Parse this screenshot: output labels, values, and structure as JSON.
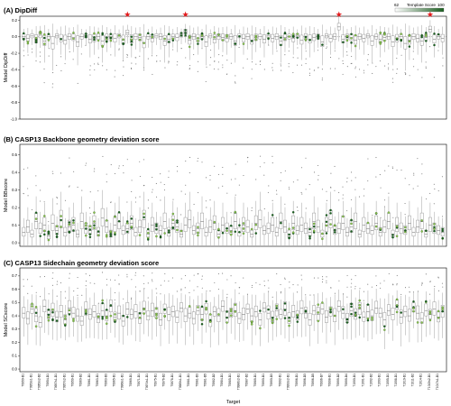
{
  "chart_data": [
    {
      "type": "box",
      "panel": "(A)",
      "title": "DipDiff",
      "ylabel": "Model DipDiff",
      "ylim": [
        -1.0,
        0.25
      ],
      "yticks": [
        -1.0,
        -0.8,
        -0.6,
        -0.4,
        -0.2,
        0.0,
        0.2
      ],
      "starred_positions": [
        25,
        39,
        76,
        98
      ],
      "box_median": [
        0.0,
        -0.02,
        0.01,
        -0.03,
        0.02,
        -0.05,
        0.0,
        -0.08,
        0.01,
        -0.02,
        -0.04,
        0.0,
        -0.01,
        -0.06,
        0.0,
        0.01,
        -0.03,
        -0.02,
        0.0,
        -0.05,
        -0.01,
        0.0,
        -0.02,
        0.01,
        -0.04,
        0.05,
        -0.03,
        0.0,
        -0.01,
        -0.07,
        0.0,
        -0.02,
        0.01,
        0.0,
        -0.05,
        -0.03,
        0.0,
        -0.01,
        0.02,
        0.06,
        -0.04,
        0.0,
        -0.02,
        0.0,
        -0.06,
        0.01,
        -0.03,
        0.0,
        -0.01,
        -0.02,
        0.0,
        -0.05,
        0.01,
        -0.02,
        0.0,
        -0.04,
        -0.01,
        0.0,
        -0.03,
        0.01,
        -0.02,
        0.0,
        -0.05,
        -0.01,
        0.0,
        -0.02,
        0.01,
        -0.04,
        0.0,
        -0.03,
        -0.01,
        0.0,
        -0.06,
        0.01,
        -0.02,
        0.0,
        0.12,
        -0.03,
        0.0,
        -0.01,
        -0.04,
        0.0,
        -0.02,
        0.01,
        -0.05,
        0.0,
        -0.03,
        -0.01,
        0.0,
        -0.06,
        -0.02,
        0.0,
        -0.08,
        -0.04,
        0.0,
        -0.02,
        -0.05,
        -0.01,
        0.09,
        -0.03,
        0.0,
        -0.02
      ],
      "box_spread": [
        0.06,
        0.08,
        0.05,
        0.1,
        0.07,
        0.12,
        0.06,
        0.15,
        0.05,
        0.09,
        0.11,
        0.07,
        0.08,
        0.13,
        0.06,
        0.05,
        0.1,
        0.09,
        0.07,
        0.12,
        0.08,
        0.06,
        0.1,
        0.05,
        0.11,
        0.06,
        0.1,
        0.07,
        0.08,
        0.14,
        0.06,
        0.09,
        0.05,
        0.07,
        0.12,
        0.1,
        0.06,
        0.08,
        0.05,
        0.06,
        0.11,
        0.07,
        0.09,
        0.06,
        0.13,
        0.05,
        0.1,
        0.07,
        0.08,
        0.09,
        0.06,
        0.12,
        0.05,
        0.09,
        0.07,
        0.11,
        0.08,
        0.06,
        0.1,
        0.05,
        0.09,
        0.07,
        0.12,
        0.08,
        0.06,
        0.09,
        0.05,
        0.11,
        0.07,
        0.1,
        0.08,
        0.06,
        0.13,
        0.05,
        0.09,
        0.07,
        0.08,
        0.1,
        0.06,
        0.08,
        0.11,
        0.07,
        0.09,
        0.05,
        0.12,
        0.06,
        0.1,
        0.08,
        0.07,
        0.13,
        0.09,
        0.06,
        0.15,
        0.11,
        0.07,
        0.09,
        0.12,
        0.08,
        0.07,
        0.1,
        0.06,
        0.09
      ]
    },
    {
      "type": "box",
      "panel": "(B)",
      "title": "CASP13 Backbone geometry deviation score",
      "ylabel": "Model BBscore",
      "ylim": [
        -0.02,
        0.56
      ],
      "yticks": [
        0.0,
        0.1,
        0.2,
        0.3,
        0.4,
        0.5
      ],
      "box_median": [
        0.06,
        0.09,
        0.05,
        0.12,
        0.08,
        0.1,
        0.04,
        0.11,
        0.07,
        0.13,
        0.06,
        0.09,
        0.1,
        0.05,
        0.12,
        0.08,
        0.07,
        0.11,
        0.06,
        0.14,
        0.09,
        0.05,
        0.1,
        0.12,
        0.07,
        0.08,
        0.11,
        0.06,
        0.09,
        0.13,
        0.05,
        0.1,
        0.08,
        0.07,
        0.12,
        0.06,
        0.11,
        0.09,
        0.05,
        0.1,
        0.13,
        0.07,
        0.08,
        0.12,
        0.06,
        0.09,
        0.11,
        0.05,
        0.1,
        0.08,
        0.07,
        0.12,
        0.06,
        0.1,
        0.09,
        0.05,
        0.11,
        0.13,
        0.07,
        0.08,
        0.1,
        0.06,
        0.12,
        0.09,
        0.05,
        0.11,
        0.07,
        0.1,
        0.08,
        0.06,
        0.12,
        0.09,
        0.05,
        0.1,
        0.13,
        0.07,
        0.08,
        0.11,
        0.06,
        0.09,
        0.12,
        0.05,
        0.1,
        0.08,
        0.07,
        0.11,
        0.06,
        0.09,
        0.12,
        0.05,
        0.1,
        0.08,
        0.07,
        0.11,
        0.06,
        0.09,
        0.12,
        0.05,
        0.1,
        0.08,
        0.07,
        0.06
      ],
      "box_spread": [
        0.05,
        0.07,
        0.04,
        0.09,
        0.06,
        0.08,
        0.04,
        0.09,
        0.05,
        0.1,
        0.05,
        0.07,
        0.08,
        0.04,
        0.09,
        0.06,
        0.05,
        0.08,
        0.05,
        0.1,
        0.07,
        0.04,
        0.08,
        0.09,
        0.05,
        0.06,
        0.08,
        0.05,
        0.07,
        0.1,
        0.04,
        0.08,
        0.06,
        0.05,
        0.09,
        0.05,
        0.08,
        0.07,
        0.04,
        0.08,
        0.1,
        0.05,
        0.06,
        0.09,
        0.05,
        0.07,
        0.08,
        0.04,
        0.08,
        0.06,
        0.05,
        0.09,
        0.05,
        0.08,
        0.07,
        0.04,
        0.08,
        0.1,
        0.05,
        0.06,
        0.08,
        0.05,
        0.09,
        0.07,
        0.04,
        0.08,
        0.05,
        0.08,
        0.06,
        0.05,
        0.09,
        0.07,
        0.04,
        0.08,
        0.1,
        0.05,
        0.06,
        0.08,
        0.05,
        0.07,
        0.09,
        0.04,
        0.08,
        0.06,
        0.05,
        0.08,
        0.05,
        0.07,
        0.09,
        0.04,
        0.08,
        0.06,
        0.05,
        0.08,
        0.05,
        0.07,
        0.09,
        0.04,
        0.08,
        0.06,
        0.05,
        0.05
      ]
    },
    {
      "type": "box",
      "panel": "(C)",
      "title": "CASP13 Sidechain geometry deviation score",
      "ylabel": "Model SCscore",
      "xlabel": "Target",
      "ylim": [
        -0.02,
        0.76
      ],
      "yticks": [
        0.0,
        0.1,
        0.2,
        0.3,
        0.4,
        0.5,
        0.6,
        0.7
      ],
      "box_median": [
        0.42,
        0.38,
        0.45,
        0.4,
        0.35,
        0.47,
        0.41,
        0.44,
        0.39,
        0.43,
        0.37,
        0.46,
        0.42,
        0.4,
        0.36,
        0.45,
        0.41,
        0.43,
        0.38,
        0.44,
        0.4,
        0.47,
        0.39,
        0.42,
        0.36,
        0.45,
        0.41,
        0.43,
        0.38,
        0.46,
        0.4,
        0.44,
        0.42,
        0.37,
        0.45,
        0.41,
        0.43,
        0.39,
        0.46,
        0.4,
        0.42,
        0.38,
        0.44,
        0.41,
        0.45,
        0.36,
        0.43,
        0.4,
        0.47,
        0.39,
        0.42,
        0.44,
        0.38,
        0.41,
        0.45,
        0.4,
        0.43,
        0.37,
        0.46,
        0.42,
        0.39,
        0.44,
        0.41,
        0.45,
        0.38,
        0.43,
        0.4,
        0.46,
        0.42,
        0.37,
        0.44,
        0.41,
        0.45,
        0.39,
        0.43,
        0.4,
        0.47,
        0.42,
        0.38,
        0.44,
        0.41,
        0.45,
        0.39,
        0.43,
        0.4,
        0.46,
        0.42,
        0.37,
        0.44,
        0.41,
        0.48,
        0.39,
        0.43,
        0.4,
        0.46,
        0.42,
        0.38,
        0.44,
        0.41,
        0.45,
        0.39,
        0.43
      ],
      "box_spread": [
        0.08,
        0.09,
        0.07,
        0.1,
        0.08,
        0.09,
        0.07,
        0.1,
        0.08,
        0.09,
        0.07,
        0.1,
        0.08,
        0.09,
        0.07,
        0.1,
        0.08,
        0.09,
        0.07,
        0.1,
        0.08,
        0.09,
        0.07,
        0.1,
        0.08,
        0.09,
        0.07,
        0.1,
        0.08,
        0.09,
        0.07,
        0.1,
        0.08,
        0.09,
        0.07,
        0.1,
        0.08,
        0.09,
        0.07,
        0.1,
        0.08,
        0.09,
        0.07,
        0.1,
        0.08,
        0.09,
        0.07,
        0.1,
        0.08,
        0.09,
        0.07,
        0.1,
        0.08,
        0.09,
        0.07,
        0.1,
        0.08,
        0.09,
        0.07,
        0.1,
        0.08,
        0.09,
        0.07,
        0.1,
        0.08,
        0.09,
        0.07,
        0.1,
        0.08,
        0.09,
        0.07,
        0.1,
        0.08,
        0.09,
        0.07,
        0.1,
        0.08,
        0.09,
        0.07,
        0.1,
        0.08,
        0.09,
        0.07,
        0.1,
        0.08,
        0.09,
        0.07,
        0.1,
        0.08,
        0.09,
        0.07,
        0.1,
        0.08,
        0.09,
        0.07,
        0.1,
        0.08,
        0.09,
        0.07,
        0.1,
        0.08,
        0.09
      ]
    }
  ],
  "legend": {
    "title": "Template Score",
    "min": "62",
    "max": "100",
    "color_low": "#ffffff",
    "color_high": "#1b5e20"
  },
  "colors": {
    "box": "#999999",
    "star": "#e31a1c",
    "green_dark": "#1b5e20",
    "green_light": "#8bc34a"
  },
  "targets": [
    "T0950-D1",
    "T0951-D1",
    "T0953s1-D1",
    "T0953s2-D1",
    "T0953s2-D2",
    "T0953s2-D3",
    "T0954-D1",
    "T0955-D1",
    "T0957s1-D1",
    "T0957s1-D2",
    "T0957s2-D1",
    "T0958-D1",
    "T0959-D1",
    "T0960-D1",
    "T0960-D2",
    "T0960-D3",
    "T0961-D1",
    "T0962-D1",
    "T0963-D1",
    "T0963-D2",
    "T0963-D3",
    "T0964-D1",
    "T0965-D1",
    "T0966-D1",
    "T0968s1-D1",
    "T0968s2-D1",
    "T0969-D1",
    "T0970-D1",
    "T0971-D1",
    "T0973-D1",
    "T0974s1-D1",
    "T0974s2-D1",
    "T0975-D1",
    "T0976-D1",
    "T0976-D2",
    "T0977-D1",
    "T0978-D1",
    "T0979-D1",
    "T0980s1-D1",
    "T0980s2-D1",
    "T0981-D1",
    "T0981-D2",
    "T0981-D3",
    "T0981-D4",
    "T0981-D5",
    "T0982-D1",
    "T0982-D2",
    "T0983-D1",
    "T0984-D1",
    "T0984-D2",
    "T0985-D1",
    "T0986s1-D1",
    "T0986s2-D1",
    "T0987-D1",
    "T0987-D2",
    "T0988-D1",
    "T0989-D1",
    "T0989-D2",
    "T0990-D1",
    "T0990-D2",
    "T0990-D3",
    "T0991-D1",
    "T0992-D1",
    "T0993s1-D1",
    "T0993s2-D1",
    "T0995-D1",
    "T0996-D1",
    "T0996-D2",
    "T0996-D3",
    "T0996-D4",
    "T0996-D5",
    "T0996-D6",
    "T0996-D7",
    "T0997-D1",
    "T0998-D1",
    "T0999-D1",
    "T0999-D2",
    "T0999-D3",
    "T0999-D4",
    "T0999-D5",
    "T1000-D1",
    "T1000-D2",
    "T1001-D1",
    "T1002-D1",
    "T1002-D2",
    "T1002-D3",
    "T1003-D1",
    "T1004-D1",
    "T1005-D1",
    "T1006-D1",
    "T1008-D1",
    "T1009-D1",
    "T1010-D1",
    "T1011-D1",
    "T1011-D2",
    "T1013-D1",
    "T1014-D1",
    "T1015s1-D1",
    "T1015s2-D1",
    "T1016-D1",
    "T1017s1-D1",
    "T1017s2-D1"
  ]
}
